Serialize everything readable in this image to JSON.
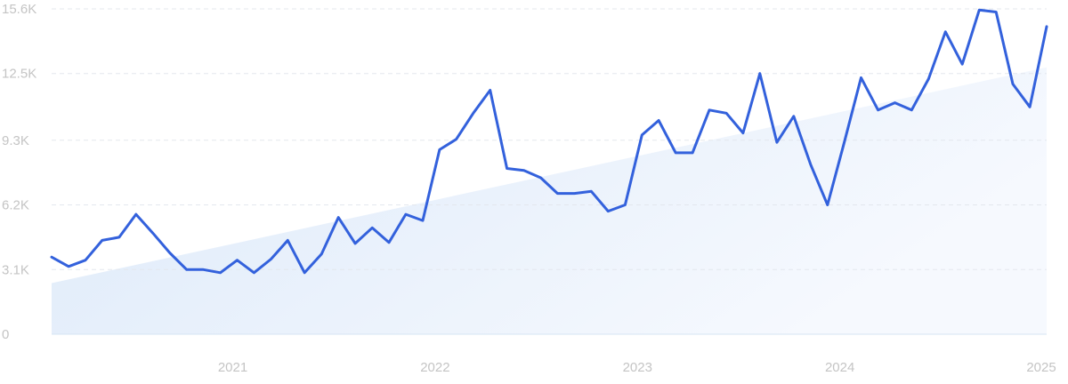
{
  "chart_data": {
    "type": "line",
    "x": [
      2020.083,
      2020.167,
      2020.25,
      2020.333,
      2020.417,
      2020.5,
      2020.583,
      2020.667,
      2020.75,
      2020.833,
      2020.917,
      2021.0,
      2021.083,
      2021.167,
      2021.25,
      2021.333,
      2021.417,
      2021.5,
      2021.583,
      2021.667,
      2021.75,
      2021.833,
      2021.917,
      2022.0,
      2022.083,
      2022.167,
      2022.25,
      2022.333,
      2022.417,
      2022.5,
      2022.583,
      2022.667,
      2022.75,
      2022.833,
      2022.917,
      2023.0,
      2023.083,
      2023.167,
      2023.25,
      2023.333,
      2023.417,
      2023.5,
      2023.583,
      2023.667,
      2023.75,
      2023.833,
      2023.917,
      2024.0,
      2024.083,
      2024.167,
      2024.25,
      2024.333,
      2024.417,
      2024.5,
      2024.583,
      2024.667,
      2024.75,
      2024.833,
      2024.917,
      2025.0
    ],
    "values": [
      3700,
      3250,
      3550,
      4500,
      4650,
      5750,
      4850,
      3900,
      3100,
      3100,
      2950,
      3550,
      2950,
      3600,
      4500,
      2950,
      3850,
      5600,
      4350,
      5100,
      4400,
      5750,
      5450,
      8850,
      9350,
      10600,
      11700,
      7950,
      7850,
      7500,
      6750,
      6750,
      6850,
      5900,
      6200,
      9550,
      10250,
      8700,
      8700,
      10750,
      10600,
      9650,
      12500,
      9200,
      10450,
      8150,
      6200,
      9200,
      12300,
      10750,
      11100,
      10750,
      12250,
      14500,
      12950,
      15550,
      15450,
      12000,
      10900,
      14750
    ],
    "color": "#3361dc",
    "trend": [
      2450,
      12800
    ],
    "xlim": [
      2020.083,
      2025
    ],
    "xticks": [
      2021,
      2022,
      2023,
      2024,
      2025
    ],
    "ylim": [
      0,
      15600
    ],
    "yticks": [
      0,
      {
        "value": 3100,
        "label": "3.1K"
      },
      {
        "value": 6200,
        "label": "6.2K"
      },
      {
        "value": 9300,
        "label": "9.3K"
      },
      {
        "value": 12500,
        "label": "12.5K"
      },
      {
        "value": 15600,
        "label": "15.6K"
      }
    ],
    "grid": true
  }
}
